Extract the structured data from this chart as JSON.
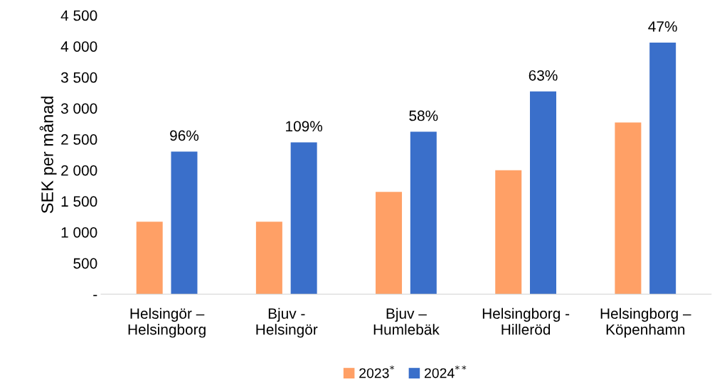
{
  "chart_data": {
    "type": "bar",
    "ylabel": "SEK per månad",
    "categories": [
      "Helsingör –\nHelsingborg",
      "Bjuv -\nHelsingör",
      "Bjuv –\nHumlebäk",
      "Helsingborg -\nHilleröd",
      "Helsingborg –\nKöpenhamn"
    ],
    "series": [
      {
        "name": "2023$^{*}$",
        "color": "#ffa066",
        "values": [
          1170,
          1170,
          1650,
          2000,
          2770
        ]
      },
      {
        "name": "2024$^{**}$",
        "color": "#3a6fca",
        "values": [
          2300,
          2450,
          2620,
          3270,
          4060
        ]
      }
    ],
    "ylim": [
      0,
      4500
    ],
    "yticks": [
      {
        "value": 0,
        "label": "-"
      },
      {
        "value": 500,
        "label": "500"
      },
      {
        "value": 1000,
        "label": "1 000"
      },
      {
        "value": 1500,
        "label": "1 500"
      },
      {
        "value": 2000,
        "label": "2 000"
      },
      {
        "value": 2500,
        "label": "2 500"
      },
      {
        "value": 3000,
        "label": "3 000"
      },
      {
        "value": 3500,
        "label": "3 500"
      },
      {
        "value": 4000,
        "label": "4 000"
      },
      {
        "value": 4500,
        "label": "4 500"
      }
    ],
    "annotations": [
      "96%",
      "109%",
      "58%",
      "63%",
      "47%"
    ],
    "grid": false,
    "legend": "bottom"
  }
}
